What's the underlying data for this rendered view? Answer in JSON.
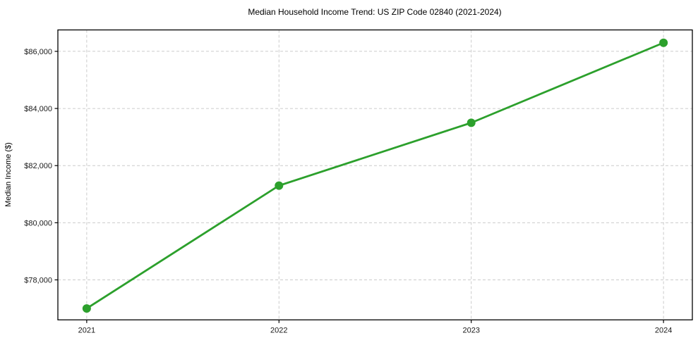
{
  "chart_data": {
    "type": "line",
    "title": "Median Household Income Trend: US ZIP Code 02840 (2021-2024)",
    "xlabel": "",
    "ylabel": "Median Income ($)",
    "x": [
      2021,
      2022,
      2023,
      2024
    ],
    "series": [
      {
        "name": "Median Household Income",
        "values": [
          77000,
          81300,
          83500,
          86300
        ],
        "color": "#2ca02c",
        "marker": "circle"
      }
    ],
    "xlim": [
      2020.85,
      2024.15
    ],
    "ylim": [
      76600,
      86750
    ],
    "xticks": [
      2021,
      2022,
      2023,
      2024
    ],
    "xtick_labels": [
      "2021",
      "2022",
      "2023",
      "2024"
    ],
    "yticks": [
      78000,
      80000,
      82000,
      84000,
      86000
    ],
    "ytick_labels": [
      "$78,000",
      "$80,000",
      "$82,000",
      "$84,000",
      "$86,000"
    ],
    "grid": true,
    "grid_style": "dashed",
    "grid_color": "#cbcbcb",
    "axis_color": "#000000",
    "tick_label_color": "#1a1a1a",
    "legend_position": "none"
  }
}
